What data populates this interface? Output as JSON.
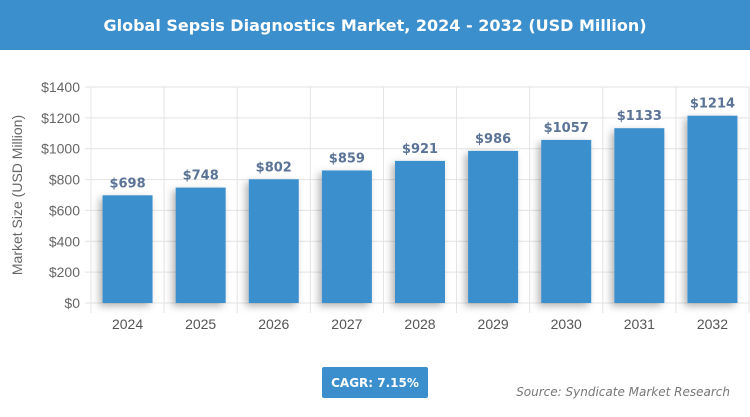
{
  "chart_data": {
    "type": "bar",
    "title": "Global Sepsis Diagnostics Market, 2024 - 2032 (USD Million)",
    "xlabel": "",
    "ylabel": "Market Size (USD Million)",
    "categories": [
      "2024",
      "2025",
      "2026",
      "2027",
      "2028",
      "2029",
      "2030",
      "2031",
      "2032"
    ],
    "values": [
      698,
      748,
      802,
      859,
      921,
      986,
      1057,
      1133,
      1214
    ],
    "data_labels": [
      "$698",
      "$748",
      "$802",
      "$859",
      "$921",
      "$986",
      "$1057",
      "$1133",
      "$1214"
    ],
    "ylim": [
      0,
      1400
    ],
    "yticks": [
      0,
      200,
      400,
      600,
      800,
      1000,
      1200,
      1400
    ],
    "ytick_labels": [
      "$0",
      "$200",
      "$400",
      "$600",
      "$800",
      "$1000",
      "$1200",
      "$1400"
    ],
    "grid": true,
    "legend": "none",
    "bar_color": "#3b8fcc"
  },
  "cagr": "CAGR: 7.15%",
  "source": "Source: Syndicate Market Research"
}
